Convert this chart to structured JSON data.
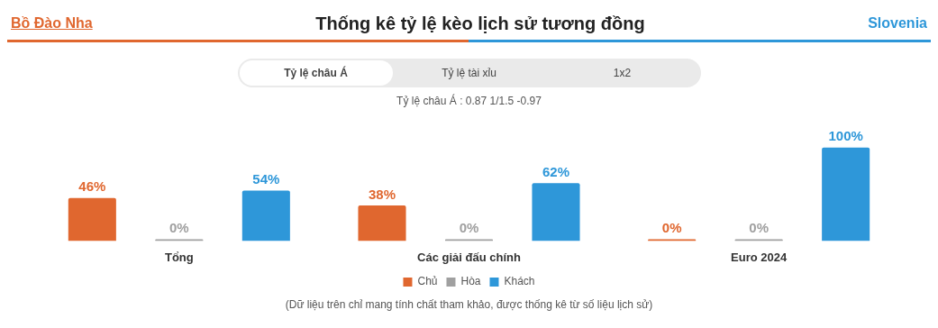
{
  "chart_data": {
    "type": "bar",
    "title": "Thống kê tỷ lệ kèo lịch sử tương đồng",
    "annotations": [
      "Bồ Đào Nha",
      "Slovenia",
      "Tỷ lệ châu Á",
      "Tỷ lệ tài xỉu",
      "1x2",
      "Tỷ lệ châu Á : 0.87  1/1.5  -0.97",
      "(Dữ liệu trên chỉ mang tính chất tham khảo, được thống kê từ số liệu lịch sử)"
    ],
    "categories": [
      "Tổng",
      "Các giải đấu chính",
      "Euro 2024"
    ],
    "series": [
      {
        "name": "Chủ",
        "color": "#e0672f",
        "values": [
          46,
          38,
          0
        ],
        "value_labels": [
          "46%",
          "38%",
          "0%"
        ]
      },
      {
        "name": "Hòa",
        "color": "#a0a0a0",
        "values": [
          0,
          0,
          0
        ],
        "value_labels": [
          "0%",
          "0%",
          "0%"
        ]
      },
      {
        "name": "Khách",
        "color": "#2e97d9",
        "values": [
          54,
          62,
          100
        ],
        "value_labels": [
          "54%",
          "62%",
          "100%"
        ]
      }
    ],
    "legend": "bottom",
    "grid": false
  }
}
